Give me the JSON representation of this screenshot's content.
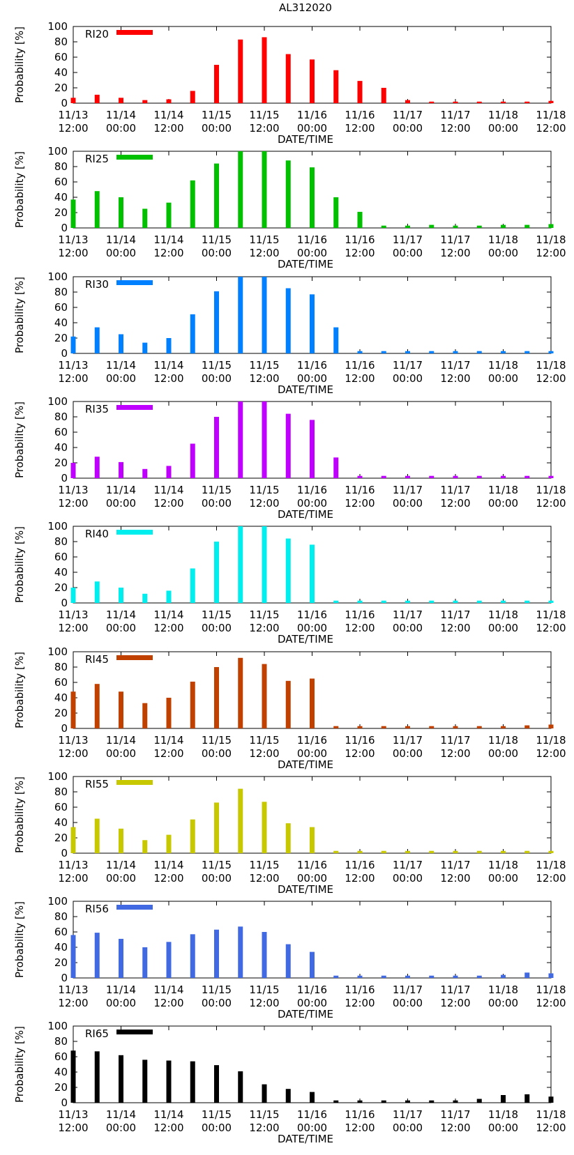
{
  "title": "AL312020",
  "chart_data": {
    "type": "bar",
    "title": "AL312020",
    "xlabel": "DATE/TIME",
    "ylabel": "Probability [%]",
    "ylim": [
      0,
      100
    ],
    "yticks": [
      0,
      20,
      40,
      60,
      80,
      100
    ],
    "x_tick_labels": [
      {
        "date": "11/13",
        "time": "12:00"
      },
      {
        "date": "11/14",
        "time": "00:00"
      },
      {
        "date": "11/14",
        "time": "12:00"
      },
      {
        "date": "11/15",
        "time": "00:00"
      },
      {
        "date": "11/15",
        "time": "12:00"
      },
      {
        "date": "11/16",
        "time": "00:00"
      },
      {
        "date": "11/16",
        "time": "12:00"
      },
      {
        "date": "11/17",
        "time": "00:00"
      },
      {
        "date": "11/17",
        "time": "12:00"
      },
      {
        "date": "11/18",
        "time": "00:00"
      },
      {
        "date": "11/18",
        "time": "12:00"
      }
    ],
    "x_hours": [
      0,
      6,
      12,
      18,
      24,
      30,
      36,
      42,
      48,
      54,
      60,
      66,
      72,
      78,
      84,
      90,
      96,
      102,
      108,
      114,
      120
    ],
    "x_range_hours": [
      0,
      120
    ],
    "panels": [
      {
        "name": "RI20",
        "color": "#ff0000",
        "values": [
          7,
          11,
          7,
          4,
          5,
          16,
          50,
          83,
          86,
          64,
          57,
          43,
          29,
          20,
          4,
          2,
          2,
          2,
          2,
          2,
          3
        ]
      },
      {
        "name": "RI25",
        "color": "#00c000",
        "values": [
          37,
          48,
          40,
          25,
          33,
          62,
          84,
          100,
          100,
          88,
          79,
          40,
          21,
          3,
          3,
          4,
          3,
          3,
          4,
          4,
          5
        ]
      },
      {
        "name": "RI30",
        "color": "#0080ff",
        "values": [
          22,
          34,
          25,
          14,
          20,
          51,
          81,
          100,
          100,
          85,
          77,
          34,
          3,
          3,
          3,
          3,
          3,
          3,
          3,
          3,
          3
        ]
      },
      {
        "name": "RI35",
        "color": "#c000ff",
        "values": [
          20,
          28,
          21,
          12,
          16,
          45,
          80,
          100,
          100,
          84,
          76,
          27,
          3,
          3,
          3,
          3,
          3,
          3,
          3,
          3,
          3
        ]
      },
      {
        "name": "RI40",
        "color": "#00eeee",
        "values": [
          20,
          28,
          20,
          12,
          16,
          45,
          80,
          100,
          100,
          84,
          76,
          3,
          3,
          3,
          3,
          3,
          3,
          3,
          3,
          3,
          3
        ]
      },
      {
        "name": "RI45",
        "color": "#c04000",
        "values": [
          48,
          58,
          48,
          33,
          40,
          61,
          80,
          92,
          84,
          62,
          65,
          3,
          3,
          3,
          3,
          3,
          3,
          3,
          3,
          4,
          5
        ]
      },
      {
        "name": "RI55",
        "color": "#c8c800",
        "values": [
          34,
          45,
          32,
          17,
          24,
          44,
          66,
          84,
          67,
          39,
          34,
          3,
          3,
          3,
          3,
          3,
          3,
          3,
          3,
          3,
          3
        ]
      },
      {
        "name": "RI56",
        "color": "#4169e1",
        "values": [
          56,
          59,
          51,
          40,
          47,
          57,
          63,
          67,
          60,
          44,
          34,
          3,
          3,
          3,
          3,
          3,
          3,
          3,
          4,
          7,
          6
        ]
      },
      {
        "name": "RI65",
        "color": "#000000",
        "values": [
          68,
          67,
          62,
          56,
          55,
          54,
          49,
          41,
          24,
          18,
          14,
          3,
          3,
          3,
          3,
          3,
          3,
          5,
          10,
          11,
          8
        ]
      }
    ]
  }
}
